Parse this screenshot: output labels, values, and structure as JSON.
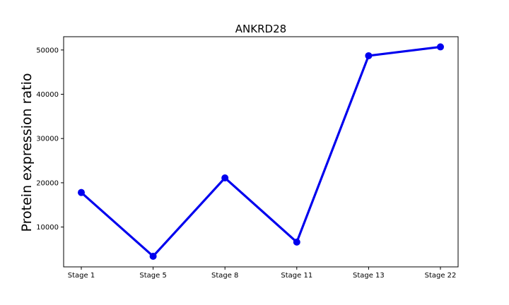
{
  "chart_data": {
    "type": "line",
    "title": "ANKRD28",
    "xlabel": "",
    "ylabel": "Protein expression ratio",
    "categories": [
      "Stage 1",
      "Stage 5",
      "Stage 8",
      "Stage 11",
      "Stage 13",
      "Stage 22"
    ],
    "series": [
      {
        "name": "ANKRD28",
        "values": [
          17800,
          3400,
          21100,
          6600,
          48700,
          50700
        ],
        "color": "#0000ee"
      }
    ],
    "yticks": [
      10000,
      20000,
      30000,
      40000,
      50000
    ],
    "ylim": [
      1000,
      53000
    ],
    "grid": false,
    "legend": "none"
  }
}
